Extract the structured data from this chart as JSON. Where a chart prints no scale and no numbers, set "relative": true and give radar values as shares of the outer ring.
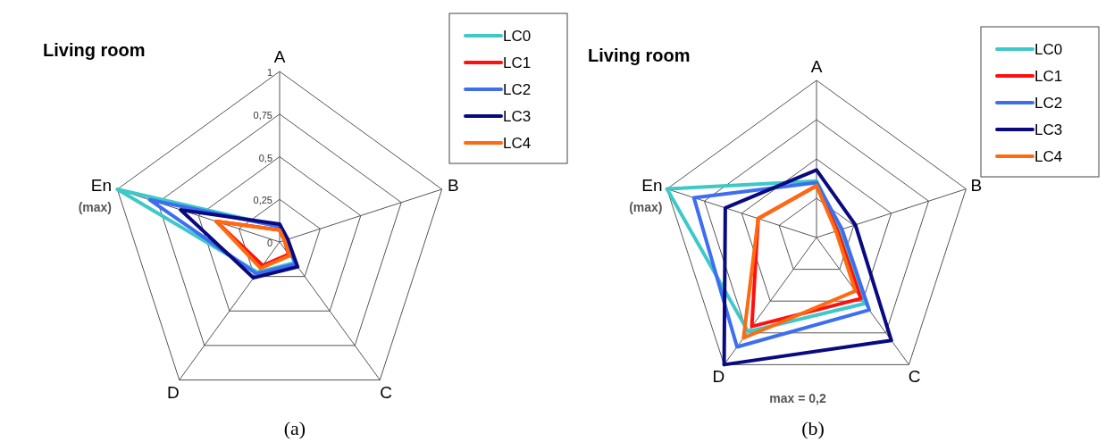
{
  "chart_data": [
    {
      "type": "radar",
      "title": "Living room",
      "subtitle": "(a)",
      "categories": [
        "A",
        "B",
        "C",
        "D",
        "En"
      ],
      "ylim": [
        0,
        1
      ],
      "yticks": [
        0,
        {
          "value": 0.25,
          "label": "0,25"
        },
        {
          "value": 0.5,
          "label": "0,5"
        },
        {
          "value": 0.75,
          "label": "0,75"
        },
        1
      ],
      "grid": true,
      "legend": "top right",
      "annotations": [
        {
          "text": "(max)",
          "x": "En"
        }
      ],
      "series": [
        {
          "name": "LC0",
          "color": "#3ec8c8",
          "values": [
            0.09,
            0.04,
            0.15,
            0.22,
            1.0
          ]
        },
        {
          "name": "LC1",
          "color": "#ff1010",
          "values": [
            0.07,
            0.03,
            0.09,
            0.17,
            0.39
          ]
        },
        {
          "name": "LC2",
          "color": "#3e6ef0",
          "values": [
            0.09,
            0.04,
            0.16,
            0.23,
            0.8
          ]
        },
        {
          "name": "LC3",
          "color": "#0a0a80",
          "values": [
            0.105,
            0.05,
            0.18,
            0.26,
            0.61
          ]
        },
        {
          "name": "LC4",
          "color": "#ff6a10",
          "values": [
            0.07,
            0.03,
            0.1,
            0.19,
            0.39
          ]
        }
      ]
    },
    {
      "type": "radar",
      "title": "Living room",
      "subtitle": "(b)",
      "categories": [
        "A",
        "B",
        "C",
        "D",
        "En"
      ],
      "relative": true,
      "grid": true,
      "legend": "top right",
      "annotations": [
        {
          "text": "(max)",
          "x": "En"
        },
        {
          "text": "max = 0,2",
          "x": "D"
        }
      ],
      "series": [
        {
          "name": "LC0",
          "color": "#3ec8c8",
          "values": [
            0.36,
            0.16,
            0.52,
            0.74,
            1.0
          ]
        },
        {
          "name": "LC1",
          "color": "#ff1010",
          "values": [
            0.33,
            0.14,
            0.48,
            0.7,
            0.39
          ]
        },
        {
          "name": "LC2",
          "color": "#3e6ef0",
          "values": [
            0.35,
            0.17,
            0.57,
            0.86,
            0.82
          ]
        },
        {
          "name": "LC3",
          "color": "#0a0a80",
          "values": [
            0.43,
            0.26,
            0.81,
            1.0,
            0.61
          ]
        },
        {
          "name": "LC4",
          "color": "#ff6a10",
          "values": [
            0.33,
            0.13,
            0.42,
            0.79,
            0.39
          ]
        }
      ]
    }
  ]
}
